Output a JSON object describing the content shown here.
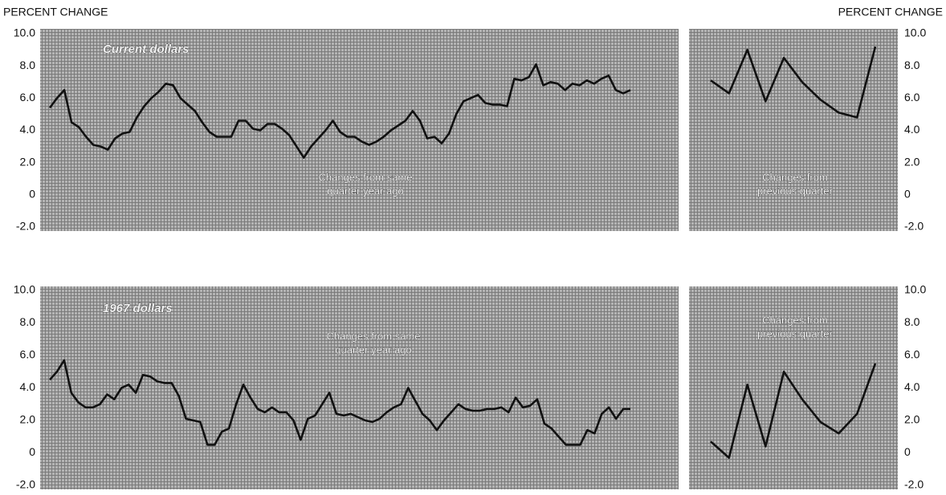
{
  "chart_data": [
    {
      "type": "line",
      "y_label": "PERCENT CHANGE",
      "label": "Current dollars",
      "note": [
        "Changes from same",
        "quarter year ago"
      ],
      "color": "#111111",
      "ylim": [
        -2,
        10
      ],
      "yticks": [
        {
          "value": 10,
          "label": "10.0"
        },
        {
          "value": 8,
          "label": "8.0"
        },
        {
          "value": 6,
          "label": "6.0"
        },
        {
          "value": 4,
          "label": "4.0"
        },
        {
          "value": 2,
          "label": "2.0"
        },
        0,
        {
          "value": -2,
          "label": "-2.0"
        }
      ],
      "values": [
        5.4,
        6.0,
        6.5,
        4.5,
        4.2,
        3.6,
        3.1,
        3.0,
        2.8,
        3.5,
        3.8,
        3.9,
        4.8,
        5.5,
        6.0,
        6.4,
        6.9,
        6.8,
        6.0,
        5.6,
        5.2,
        4.5,
        3.9,
        3.6,
        3.6,
        3.6,
        4.6,
        4.6,
        4.1,
        4.0,
        4.4,
        4.4,
        4.1,
        3.7,
        3.0,
        2.3,
        3.0,
        3.5,
        4.0,
        4.6,
        3.9,
        3.6,
        3.6,
        3.3,
        3.1,
        3.3,
        3.6,
        4.0,
        4.3,
        4.6,
        5.2,
        4.6,
        3.5,
        3.6,
        3.2,
        3.8,
        5.0,
        5.8,
        6.0,
        6.2,
        5.7,
        5.6,
        5.6,
        5.5,
        7.2,
        7.1,
        7.3,
        8.1,
        6.8,
        7.0,
        6.9,
        6.5,
        6.9,
        6.8,
        7.1,
        6.9,
        7.2,
        7.4,
        6.5,
        6.3,
        6.5
      ]
    },
    {
      "type": "line",
      "y_label": "PERCENT CHANGE",
      "note": [
        "Changes from",
        "previous quarter"
      ],
      "color": "#111111",
      "ylim": [
        -2,
        10
      ],
      "yticks": [
        {
          "value": 10,
          "label": "10.0"
        },
        {
          "value": 8,
          "label": "8.0"
        },
        {
          "value": 6,
          "label": "6.0"
        },
        {
          "value": 4,
          "label": "4.0"
        },
        {
          "value": 2,
          "label": "2.0"
        },
        0,
        {
          "value": -2,
          "label": "-2.0"
        }
      ],
      "values": [
        7.1,
        6.3,
        9.0,
        5.8,
        8.5,
        7.0,
        5.9,
        5.1,
        4.8,
        9.2
      ]
    },
    {
      "type": "line",
      "label": "1967 dollars",
      "note": [
        "Changes from same",
        "quarter year ago"
      ],
      "color": "#111111",
      "ylim": [
        -2,
        10
      ],
      "yticks": [
        {
          "value": 10,
          "label": "10.0"
        },
        {
          "value": 8,
          "label": "8.0"
        },
        {
          "value": 6,
          "label": "6.0"
        },
        {
          "value": 4,
          "label": "4.0"
        },
        {
          "value": 2,
          "label": "2.0"
        },
        0,
        {
          "value": -2,
          "label": "-2.0"
        }
      ],
      "values": [
        4.5,
        5.0,
        5.7,
        3.7,
        3.1,
        2.8,
        2.8,
        3.0,
        3.6,
        3.3,
        4.0,
        4.2,
        3.7,
        4.8,
        4.7,
        4.4,
        4.3,
        4.3,
        3.5,
        2.1,
        2.0,
        1.9,
        0.5,
        0.5,
        1.3,
        1.5,
        3.0,
        4.2,
        3.4,
        2.7,
        2.5,
        2.8,
        2.5,
        2.5,
        2.0,
        0.8,
        2.1,
        2.3,
        3.0,
        3.7,
        2.4,
        2.3,
        2.4,
        2.2,
        2.0,
        1.9,
        2.1,
        2.5,
        2.8,
        3.0,
        4.0,
        3.2,
        2.4,
        2.0,
        1.4,
        2.0,
        2.5,
        3.0,
        2.7,
        2.6,
        2.6,
        2.7,
        2.7,
        2.8,
        2.5,
        3.4,
        2.8,
        2.9,
        3.3,
        1.8,
        1.5,
        1.0,
        0.5,
        0.5,
        0.5,
        1.4,
        1.2,
        2.4,
        2.8,
        2.1,
        2.7,
        2.7
      ]
    },
    {
      "type": "line",
      "note": [
        "Changes from",
        "previous quarter"
      ],
      "color": "#111111",
      "ylim": [
        -2,
        10
      ],
      "yticks": [
        {
          "value": 10,
          "label": "10.0"
        },
        {
          "value": 8,
          "label": "8.0"
        },
        {
          "value": 6,
          "label": "6.0"
        },
        {
          "value": 4,
          "label": "4.0"
        },
        {
          "value": 2,
          "label": "2.0"
        },
        0,
        {
          "value": -2,
          "label": "-2.0"
        }
      ],
      "values": [
        0.7,
        -0.3,
        4.2,
        0.4,
        5.0,
        3.3,
        1.9,
        1.2,
        2.4,
        5.5
      ]
    }
  ]
}
